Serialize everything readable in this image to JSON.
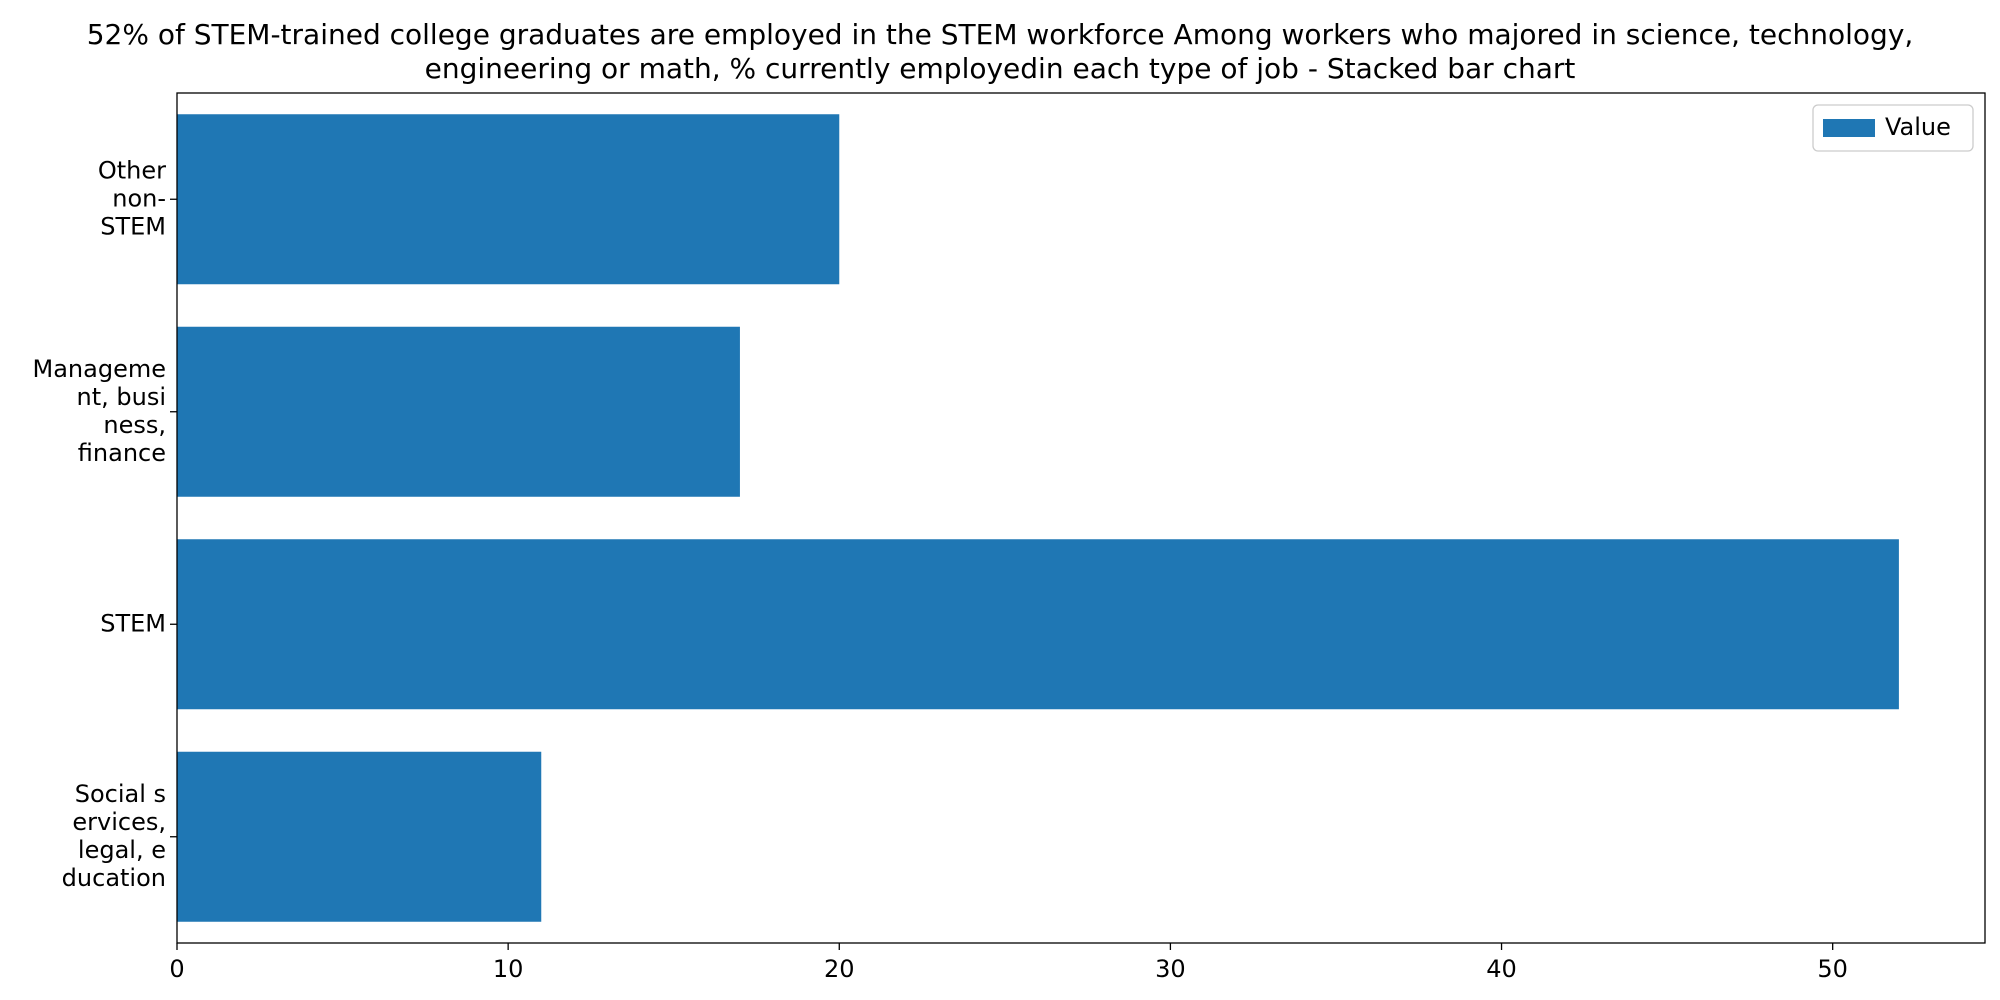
{
  "chart_data": {
    "type": "bar",
    "orientation": "horizontal",
    "title": "52% of STEM-trained college graduates are employed in the STEM workforce Among workers who majored in science, technology, engineering or math, % currently employedin each type of job  - Stacked bar chart",
    "categories": [
      "Social services, legal, education",
      "STEM",
      "Management, business, finance",
      "Other non-STEM"
    ],
    "category_tick_lines": [
      [
        "Social s",
        "ervices,",
        "legal, e",
        "ducation"
      ],
      [
        "STEM"
      ],
      [
        "Manageme",
        "nt, busi",
        "ness,",
        "finance"
      ],
      [
        "Other",
        "non-",
        "STEM"
      ]
    ],
    "series": [
      {
        "name": "Value",
        "values": [
          11,
          52,
          17,
          20
        ],
        "color": "#1f77b4"
      }
    ],
    "xlim": [
      0,
      54.6
    ],
    "xticks": [
      0,
      10,
      20,
      30,
      40,
      50
    ],
    "xlabel": "",
    "ylabel": "",
    "grid": false,
    "legend": {
      "position": "top-right",
      "entries": [
        "Value"
      ]
    }
  }
}
